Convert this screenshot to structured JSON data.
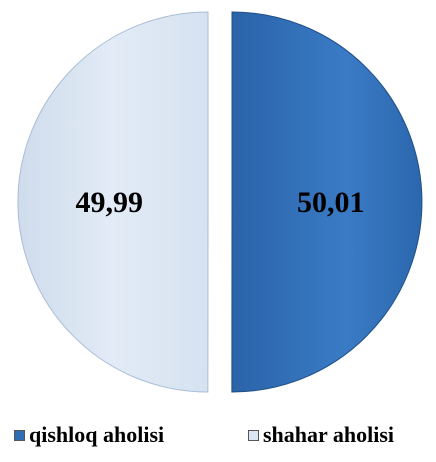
{
  "chart_data": {
    "type": "pie",
    "title": "",
    "series": [
      {
        "name": "qishloq aholisi",
        "value": 50.01,
        "label": "50,01",
        "color": "#2f6db5"
      },
      {
        "name": "shahar aholisi",
        "value": 49.99,
        "label": "49,99",
        "color": "#dce6f2"
      }
    ],
    "legend_position": "bottom",
    "exploded": true
  }
}
